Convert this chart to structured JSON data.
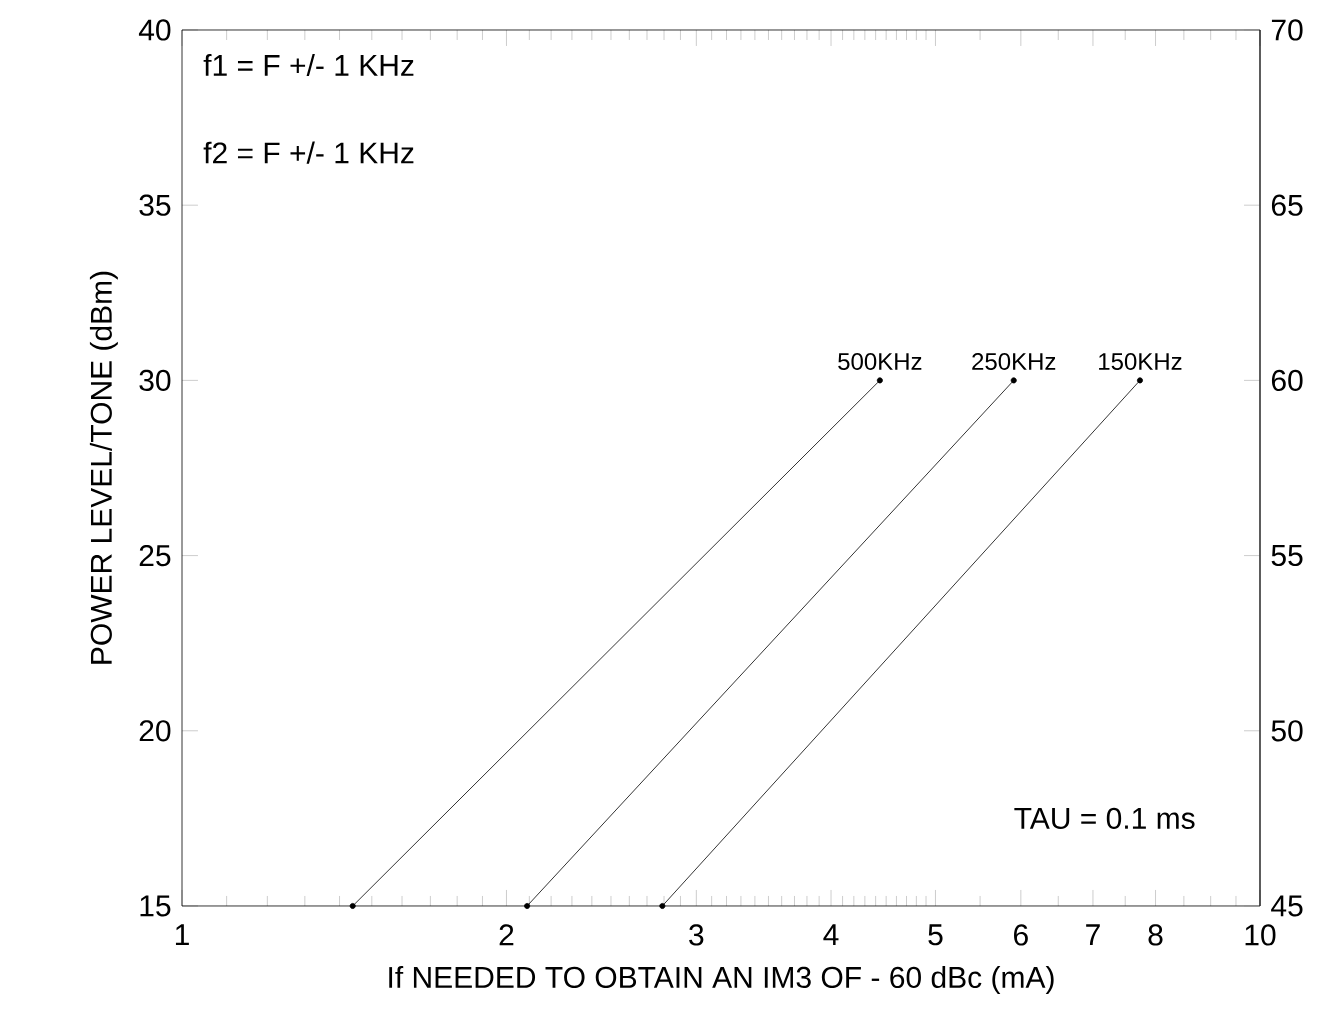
{
  "chart_data": {
    "type": "line",
    "xlabel": "If NEEDED TO OBTAIN AN IM3 OF - 60 dBc (mA)",
    "ylabel": "POWER LEVEL/TONE (dBm)",
    "log": "x",
    "xlim": [
      1,
      10
    ],
    "xticks": [
      1,
      2,
      3,
      4,
      5,
      6,
      7,
      8,
      10
    ],
    "ylim": [
      15,
      40
    ],
    "yticks": [
      15,
      20,
      25,
      30,
      35,
      40
    ],
    "y2lim": [
      45,
      70
    ],
    "y2ticks": [
      45,
      50,
      55,
      60,
      65,
      70
    ],
    "grid": false,
    "marker": "circle",
    "line_style": "solid",
    "series": [
      {
        "name": "500KHz",
        "color": "#000000",
        "x": [
          1.44,
          4.44
        ],
        "values": [
          15,
          30
        ]
      },
      {
        "name": "250KHz",
        "color": "#000000",
        "x": [
          2.09,
          5.91
        ],
        "values": [
          15,
          30
        ]
      },
      {
        "name": "150KHz",
        "color": "#000000",
        "x": [
          2.79,
          7.74
        ],
        "values": [
          15,
          30
        ]
      }
    ],
    "annotations": [
      "f1 = F +/- 1 KHz",
      "f2 = F +/- 1 KHz",
      "TAU  =  0.1  ms"
    ]
  }
}
